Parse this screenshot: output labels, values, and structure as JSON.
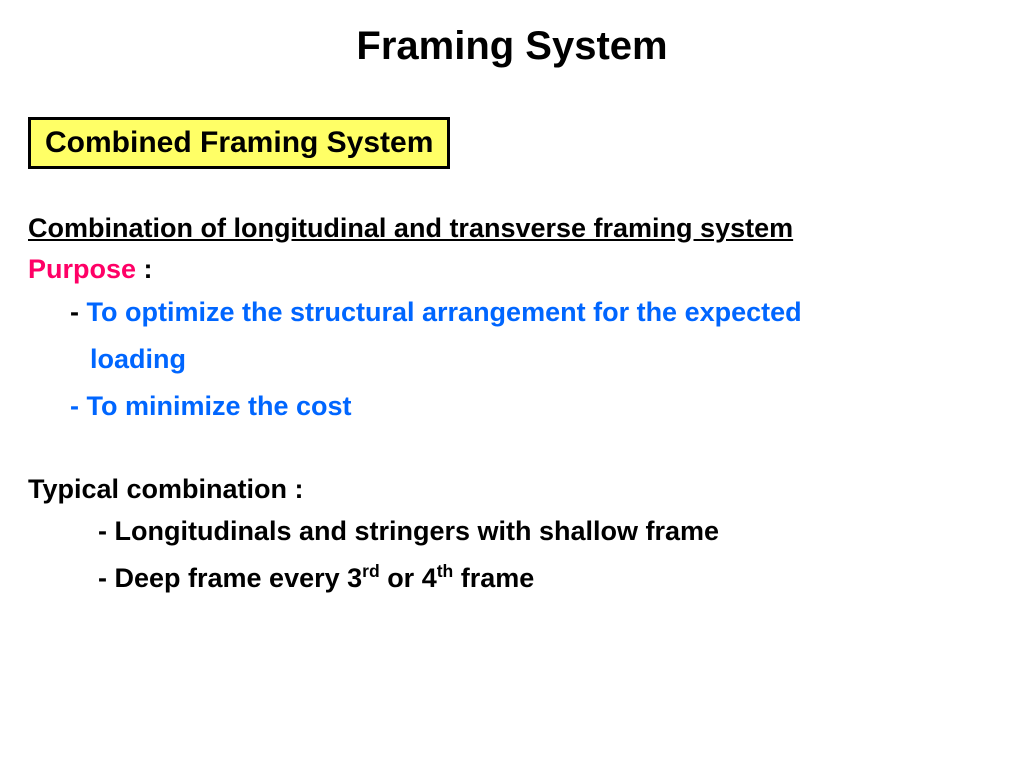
{
  "title": "Framing System",
  "subtitle_box": "Combined Framing System",
  "heading_underline": "Combination of longitudinal and transverse framing system",
  "purpose_label": "Purpose",
  "purpose_colon": " :",
  "purpose_bullets": {
    "b1_dash": "- ",
    "b1_text_a": "To optimize the structural arrangement for the expected",
    "b1_text_b": "loading",
    "b2_full": "- To minimize the cost"
  },
  "typical_heading": "Typical combination :",
  "typical_bullets": {
    "t1": "- Longitudinals and stringers with shallow frame",
    "t2_a": "- Deep frame every 3",
    "t2_sup1": "rd",
    "t2_b": "  or 4",
    "t2_sup2": "th",
    "t2_c": " frame"
  },
  "colors": {
    "highlight_bg": "#ffff66",
    "purpose": "#ff0066",
    "blue": "#0066ff",
    "black": "#000000"
  }
}
